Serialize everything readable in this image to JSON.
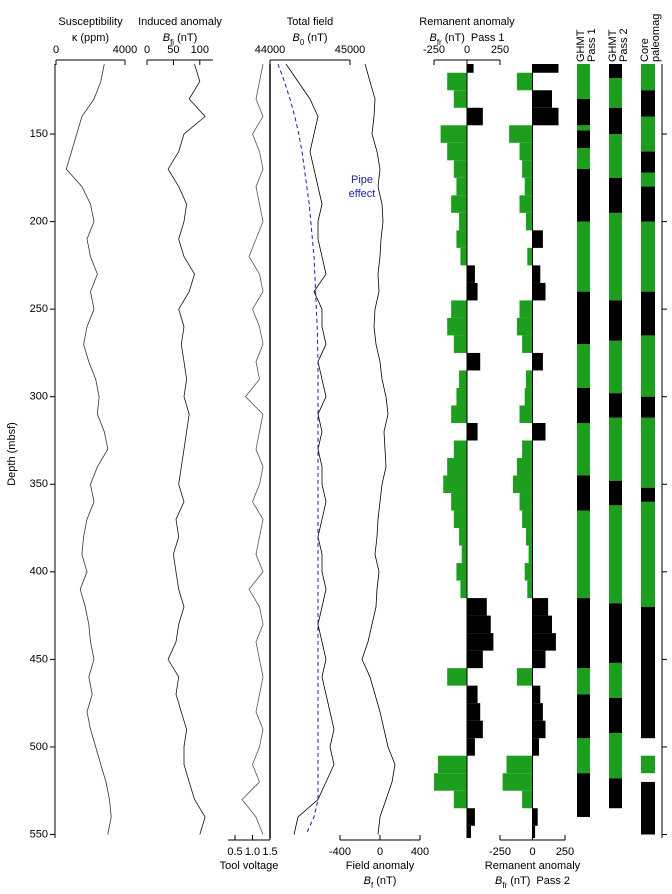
{
  "depth_axis": {
    "label": "Depth (mbsf)",
    "ylim": [
      110,
      552
    ],
    "yticks": [
      150,
      200,
      250,
      300,
      350,
      400,
      450,
      500,
      550
    ],
    "depths": [
      110,
      120,
      130,
      140,
      150,
      160,
      170,
      180,
      190,
      200,
      210,
      220,
      230,
      240,
      250,
      260,
      270,
      280,
      290,
      300,
      310,
      320,
      330,
      340,
      350,
      360,
      370,
      380,
      390,
      400,
      410,
      420,
      430,
      440,
      450,
      460,
      470,
      480,
      490,
      500,
      510,
      520,
      530,
      540,
      550
    ]
  },
  "chart_data": [
    {
      "type": "line",
      "title": "Susceptibility",
      "label": {
        "symbol": "κ",
        "unit": "(ppm)"
      },
      "tick_side": "top",
      "xlim": [
        0,
        4000
      ],
      "xticks": [
        0,
        4000
      ],
      "color": "#333333",
      "values": [
        2800,
        2600,
        2200,
        1500,
        1200,
        900,
        600,
        1500,
        2000,
        2200,
        1800,
        2000,
        2400,
        2000,
        2200,
        1800,
        1600,
        1900,
        2300,
        2500,
        2400,
        2800,
        3000,
        2400,
        2000,
        2200,
        1800,
        1600,
        1500,
        1800,
        1400,
        1700,
        1900,
        2000,
        2200,
        1900,
        2100,
        1800,
        2000,
        2300,
        2600,
        2900,
        3100,
        3200,
        3000
      ]
    },
    {
      "type": "line",
      "title": "Induced anomaly",
      "label": {
        "symbol": "B",
        "subscript": "fi",
        "unit": "(nT)"
      },
      "tick_side": "top",
      "xlim": [
        0,
        125
      ],
      "xticks": [
        0,
        50,
        100
      ],
      "color": "#111111",
      "values": [
        90,
        100,
        80,
        110,
        70,
        60,
        40,
        60,
        75,
        70,
        60,
        70,
        90,
        80,
        60,
        70,
        65,
        70,
        75,
        70,
        80,
        75,
        70,
        65,
        60,
        70,
        55,
        60,
        50,
        55,
        60,
        70,
        60,
        55,
        40,
        60,
        55,
        65,
        75,
        70,
        70,
        80,
        90,
        110,
        100
      ]
    },
    {
      "type": "line",
      "title": "Tool voltage",
      "tick_side": "bottom",
      "xlim": [
        0.3,
        1.5
      ],
      "xticks": [
        0.5,
        {
          "value": 1,
          "label": "1.0"
        },
        1.5
      ],
      "color": "#555555",
      "values": [
        1.3,
        1.2,
        1.1,
        1.3,
        1.0,
        1.2,
        1.3,
        1.1,
        1.2,
        1.3,
        1.1,
        0.9,
        1.2,
        1.3,
        1.0,
        1.2,
        1.3,
        1.1,
        1.2,
        0.8,
        1.3,
        1.2,
        1.1,
        1.3,
        1.2,
        1.0,
        1.3,
        1.2,
        1.1,
        1.3,
        0.9,
        1.2,
        1.3,
        1.1,
        1.2,
        1.3,
        1.2,
        1.1,
        1.3,
        1.2,
        1.0,
        1.2,
        0.7,
        1.1,
        1.3
      ]
    },
    {
      "type": "line",
      "title": "Total field",
      "label": {
        "symbol": "B",
        "subscript": "0",
        "unit": "(nT)"
      },
      "tick_side": "top",
      "xlim": [
        44000,
        45000
      ],
      "xticks": [
        44000,
        45000
      ],
      "color": "#000000",
      "values": [
        44200,
        44350,
        44500,
        44600,
        44550,
        44500,
        44550,
        44600,
        44650,
        44600,
        44600,
        44650,
        44700,
        44550,
        44650,
        44650,
        44700,
        44600,
        44650,
        44700,
        44600,
        44650,
        44600,
        44650,
        44650,
        44700,
        44650,
        44600,
        44650,
        44650,
        44700,
        44650,
        44600,
        44650,
        44700,
        44650,
        44700,
        44750,
        44800,
        44750,
        44800,
        44700,
        44600,
        44350,
        44300
      ],
      "pipe_effect": {
        "label_lines": [
          "Pipe",
          "effect"
        ],
        "color": "#1f1f9a",
        "values": [
          44100,
          44180,
          44250,
          44310,
          44360,
          44400,
          44430,
          44460,
          44490,
          44510,
          44530,
          44550,
          44560,
          44570,
          44580,
          44590,
          44595,
          44600,
          44600,
          44600,
          44600,
          44600,
          44600,
          44600,
          44600,
          44600,
          44600,
          44600,
          44600,
          44600,
          44600,
          44600,
          44600,
          44600,
          44600,
          44600,
          44600,
          44600,
          44600,
          44600,
          44600,
          44600,
          44600,
          44550,
          44450
        ]
      }
    },
    {
      "type": "line",
      "title": "Field anomaly",
      "label": {
        "symbol": "B",
        "subscript": "f",
        "unit": "(nT)"
      },
      "tick_side": "bottom",
      "xlim": [
        -400,
        400
      ],
      "xticks": [
        -400,
        0,
        400
      ],
      "color": "#000000",
      "values": [
        -150,
        -100,
        -50,
        -60,
        -80,
        -30,
        0,
        -20,
        20,
        30,
        10,
        0,
        -20,
        -10,
        -50,
        -60,
        -40,
        0,
        20,
        60,
        80,
        40,
        50,
        60,
        20,
        0,
        -20,
        -30,
        -50,
        -10,
        -30,
        -40,
        -80,
        -120,
        -180,
        -100,
        -50,
        0,
        40,
        80,
        150,
        120,
        60,
        0,
        -20
      ]
    },
    {
      "type": "bar",
      "title": "Remanent anomaly",
      "label": {
        "symbol": "B",
        "subscript": "fr",
        "unit": "(nT)",
        "suffix": "Pass 1"
      },
      "tick_side": "top",
      "xlim": [
        -250,
        250
      ],
      "xticks": [
        -250,
        0,
        250
      ],
      "positive_color": "#000000",
      "negative_color": "#1e9e1e",
      "values": [
        50,
        -150,
        -100,
        120,
        -200,
        -150,
        -100,
        -80,
        -120,
        -60,
        -80,
        -50,
        60,
        80,
        -120,
        -150,
        -100,
        100,
        -60,
        -80,
        -120,
        80,
        -100,
        -150,
        -180,
        -120,
        -100,
        -60,
        -40,
        -80,
        -50,
        150,
        180,
        200,
        120,
        -150,
        80,
        100,
        120,
        60,
        -220,
        -250,
        -100,
        60,
        30
      ]
    },
    {
      "type": "bar",
      "title": "Remanent anomaly",
      "label": {
        "symbol": "B",
        "subscript": "fr",
        "unit": "(nT)",
        "suffix": "Pass 2"
      },
      "tick_side": "bottom",
      "xlim": [
        -250,
        250
      ],
      "xticks": [
        -250,
        0,
        250
      ],
      "positive_color": "#000000",
      "negative_color": "#1e9e1e",
      "values": [
        200,
        -120,
        150,
        200,
        -180,
        -100,
        -80,
        -60,
        -100,
        -50,
        80,
        -40,
        60,
        100,
        -100,
        -120,
        -80,
        80,
        -50,
        -60,
        -100,
        100,
        -80,
        -120,
        -150,
        -100,
        -80,
        -50,
        -30,
        -60,
        -40,
        120,
        150,
        180,
        100,
        -120,
        60,
        80,
        100,
        50,
        -200,
        -230,
        -80,
        40,
        20
      ]
    },
    {
      "type": "strip",
      "title_lines": [
        "GHMT",
        "Pass 1"
      ],
      "normal_color": "#1e9e1e",
      "reversed_color": "#000000",
      "normal_intervals": [
        [
          110,
          130
        ],
        [
          145,
          148
        ],
        [
          158,
          170
        ],
        [
          200,
          240
        ],
        [
          270,
          295
        ],
        [
          315,
          345
        ],
        [
          365,
          415
        ],
        [
          455,
          470
        ],
        [
          495,
          515
        ]
      ],
      "reversed_intervals": [
        [
          130,
          145
        ],
        [
          148,
          158
        ],
        [
          170,
          200
        ],
        [
          240,
          270
        ],
        [
          295,
          315
        ],
        [
          345,
          365
        ],
        [
          415,
          455
        ],
        [
          470,
          495
        ],
        [
          515,
          540
        ]
      ]
    },
    {
      "type": "strip",
      "title_lines": [
        "GHMT",
        "Pass 2"
      ],
      "normal_color": "#1e9e1e",
      "reversed_color": "#000000",
      "normal_intervals": [
        [
          118,
          135
        ],
        [
          150,
          175
        ],
        [
          195,
          245
        ],
        [
          268,
          298
        ],
        [
          312,
          348
        ],
        [
          362,
          418
        ],
        [
          452,
          472
        ],
        [
          492,
          518
        ]
      ],
      "reversed_intervals": [
        [
          110,
          118
        ],
        [
          135,
          150
        ],
        [
          175,
          195
        ],
        [
          245,
          268
        ],
        [
          298,
          312
        ],
        [
          348,
          362
        ],
        [
          418,
          452
        ],
        [
          472,
          492
        ],
        [
          518,
          535
        ]
      ]
    },
    {
      "type": "strip",
      "title_lines": [
        "Core",
        "paleomag"
      ],
      "normal_color": "#1e9e1e",
      "reversed_color": "#000000",
      "normal_intervals": [
        [
          110,
          125
        ],
        [
          140,
          160
        ],
        [
          172,
          180
        ],
        [
          200,
          240
        ],
        [
          265,
          300
        ],
        [
          312,
          352
        ],
        [
          360,
          420
        ],
        [
          505,
          515
        ]
      ],
      "reversed_intervals": [
        [
          125,
          140
        ],
        [
          160,
          172
        ],
        [
          180,
          200
        ],
        [
          240,
          265
        ],
        [
          300,
          312
        ],
        [
          352,
          360
        ],
        [
          420,
          495
        ],
        [
          520,
          550
        ]
      ]
    }
  ]
}
